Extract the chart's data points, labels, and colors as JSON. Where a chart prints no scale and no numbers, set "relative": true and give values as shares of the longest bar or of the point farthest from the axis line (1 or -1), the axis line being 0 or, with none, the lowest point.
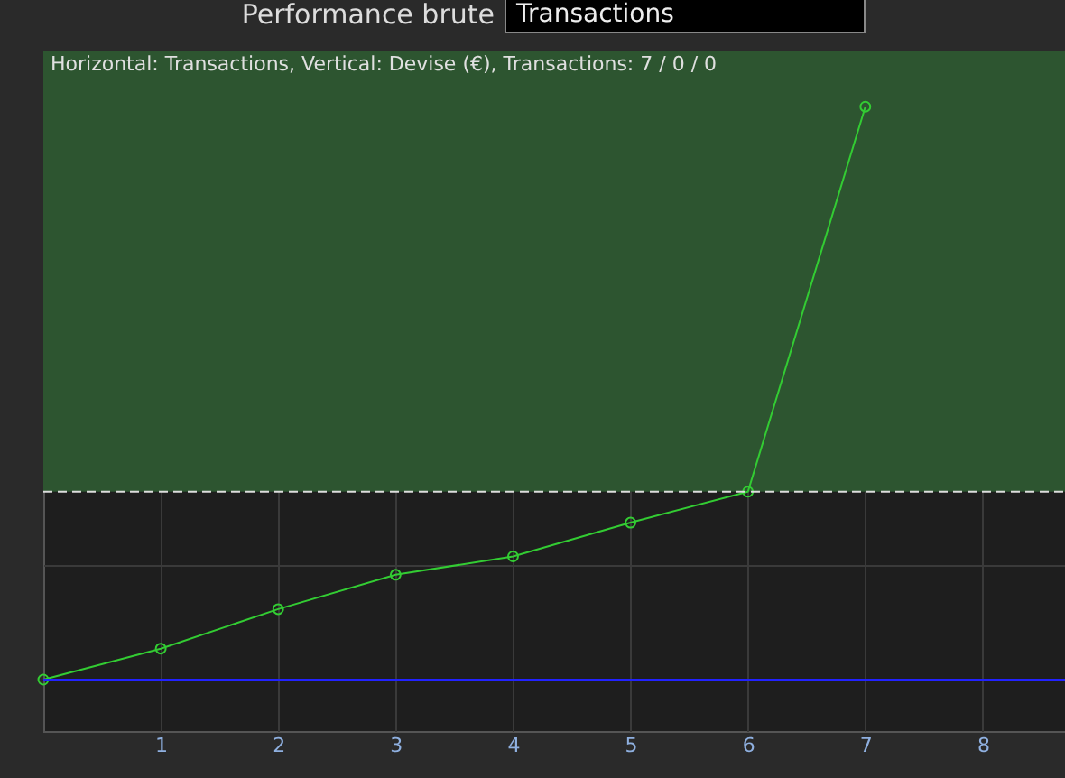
{
  "chart_data": {
    "type": "line",
    "title": "Performance brute",
    "annotations": [
      "Transactions",
      "Horizontal: Transactions, Vertical: Devise (€), Transactions: 7 / 0 / 0"
    ],
    "x": [
      0,
      1,
      2,
      3,
      4,
      5,
      6,
      7
    ],
    "series": [
      {
        "color": "#33cc33",
        "values": [
          0,
          0.054,
          0.123,
          0.183,
          0.215,
          0.274,
          0.328,
          1
        ]
      }
    ],
    "relative": true,
    "xlim": [
      0,
      8.7
    ],
    "xticks": [
      1,
      2,
      3,
      4,
      5,
      6,
      7,
      8
    ],
    "ref_lines": [
      {
        "axis": "y",
        "value": 0,
        "color": "#2222ff",
        "line_style": "solid"
      },
      {
        "axis": "y",
        "value": 0.328,
        "color": "#dddddd",
        "line_style": "dashed"
      }
    ],
    "bands": [
      {
        "axis": "y",
        "from": 0.328,
        "to": 1.098,
        "color": "#2d5530"
      }
    ],
    "grid": true,
    "marker": "circle",
    "line_style": "solid"
  }
}
